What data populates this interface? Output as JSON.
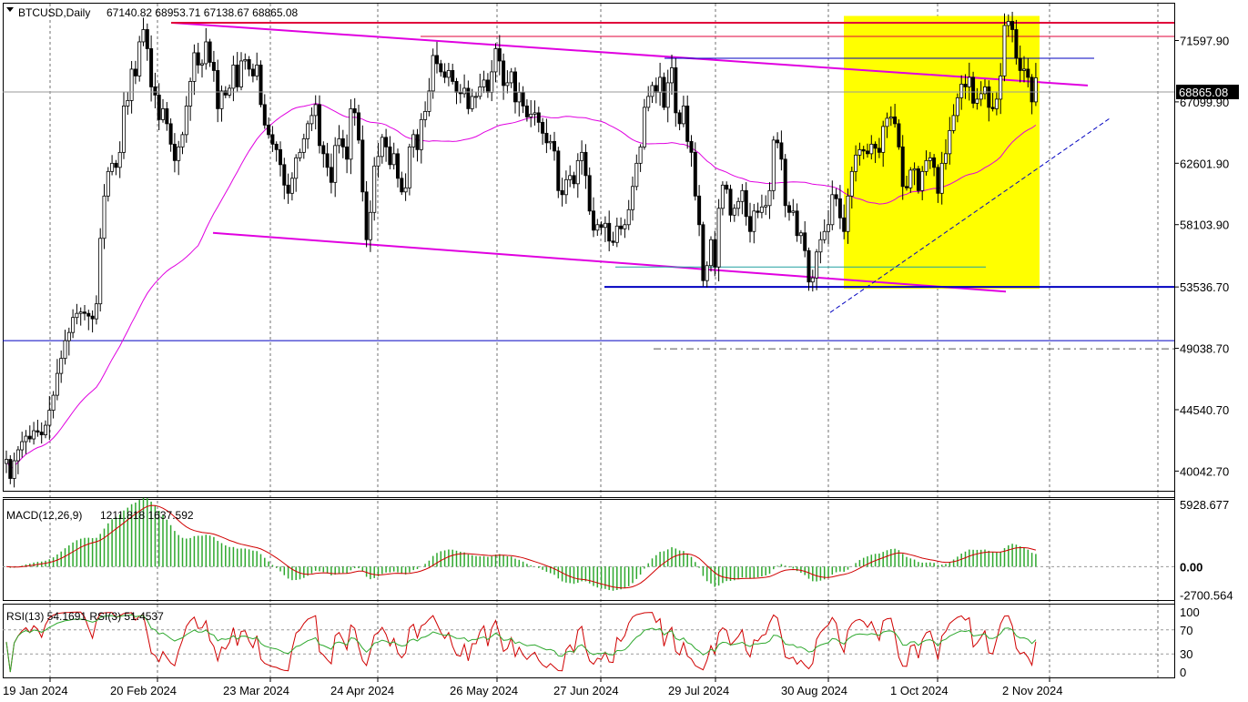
{
  "header": {
    "symbol": "BTCUSD,Daily",
    "ohlc": "67140.82 68953.71 67138.67 68865.08"
  },
  "colors": {
    "background": "#ffffff",
    "grid": "#000000",
    "candle": "#000000",
    "bull_fill": "#ffffff",
    "ma": "#e000e0",
    "channel": "#e000e0",
    "resistance": "#e0003a",
    "support": "#0000c0",
    "highlight": "#ffff00",
    "macd_hist": "#2ea82e",
    "macd_signal": "#d00000",
    "rsi_fast": "#d00000",
    "rsi_slow": "#2ea82e",
    "current_price_label_bg": "#000000"
  },
  "chart_data": [
    {
      "type": "candlestick",
      "symbol": "BTCUSD",
      "timeframe": "Daily",
      "x_tick_labels": [
        "19 Jan 2024",
        "20 Feb 2024",
        "23 Mar 2024",
        "24 Apr 2024",
        "26 May 2024",
        "27 Jun 2024",
        "29 Jul 2024",
        "30 Aug 2024",
        "1 Oct 2024",
        "2 Nov 2024"
      ],
      "y_tick_labels": [
        "71597.90",
        "67099.90",
        "62601.90",
        "58103.90",
        "53536.70",
        "49038.70",
        "44540.70",
        "40042.70"
      ],
      "current_price_label": "68865.08",
      "grid": true,
      "ylim": [
        38600,
        74300
      ],
      "closes": [
        40900,
        39500,
        40800,
        41600,
        42200,
        42600,
        42400,
        43000,
        42900,
        42700,
        43400,
        44500,
        45600,
        47200,
        48300,
        49600,
        50200,
        51300,
        51600,
        51700,
        51600,
        51400,
        51200,
        52300,
        57100,
        60200,
        62000,
        62600,
        62300,
        63400,
        66800,
        67200,
        69500,
        69000,
        71500,
        72400,
        71000,
        68200,
        67600,
        65800,
        66600,
        65500,
        64000,
        62800,
        63800,
        64700,
        66800,
        68600,
        70700,
        69800,
        69900,
        71500,
        70000,
        69400,
        66600,
        67900,
        67600,
        68100,
        69800,
        68200,
        70100,
        70200,
        69500,
        69000,
        69800,
        66900,
        65400,
        64700,
        64000,
        63600,
        62500,
        61000,
        60400,
        61500,
        63000,
        63400,
        64400,
        65500,
        66100,
        66900,
        63900,
        63300,
        62300,
        61200,
        63900,
        64400,
        63800,
        62900,
        66600,
        66300,
        64300,
        60500,
        57000,
        59000,
        62400,
        63100,
        64500,
        63800,
        62500,
        63300,
        61500,
        60500,
        60800,
        63800,
        64700,
        63600,
        65800,
        66400,
        67900,
        70500,
        69900,
        69300,
        68900,
        69400,
        68600,
        67800,
        67700,
        68100,
        66600,
        67500,
        67500,
        68200,
        68700,
        67800,
        69300,
        71000,
        70100,
        68300,
        68500,
        69300,
        67100,
        67800,
        66800,
        66000,
        66200,
        66300,
        65600,
        64800,
        64100,
        64200,
        63500,
        60600,
        60300,
        61400,
        61700,
        61100,
        62800,
        63400,
        61700,
        59100,
        57700,
        58100,
        57900,
        58200,
        56900,
        56800,
        58000,
        57800,
        58100,
        59200,
        60900,
        62600,
        63800,
        66700,
        67500,
        68300,
        67800,
        68900,
        66700,
        68500,
        69600,
        66300,
        65500,
        66800,
        64200,
        63400,
        60200,
        58100,
        54000,
        55100,
        57000,
        55000,
        59300,
        61000,
        60700,
        58800,
        59300,
        59800,
        60600,
        58700,
        57600,
        59100,
        59000,
        59400,
        59500,
        60600,
        64300,
        64100,
        62900,
        59500,
        59000,
        59100,
        57300,
        57500,
        56200,
        53900,
        54200,
        56100,
        57000,
        57600,
        58100,
        60300,
        60000,
        58600,
        57600,
        60200,
        62000,
        63200,
        63600,
        63500,
        63300,
        64000,
        63700,
        63400,
        65300,
        65900,
        66000,
        65500,
        63800,
        60900,
        60800,
        62100,
        62200,
        60600,
        62000,
        62800,
        63000,
        62300,
        60400,
        62600,
        63300,
        65000,
        66100,
        67400,
        68400,
        68200,
        68900,
        67000,
        67300,
        67700,
        68200,
        66700,
        66600,
        67300,
        69000,
        72700,
        73000,
        72400,
        70300,
        69400,
        69500,
        68900,
        67100,
        68865.08
      ],
      "moving_average_end": 65200,
      "highlight_box": {
        "x_start": "30 Aug 2024",
        "x_end": "2 Nov 2024",
        "y_range": [
          53400,
          73400
        ]
      },
      "trendlines": [
        {
          "role": "channel-top",
          "from": [
            72900,
            "20 Feb 2024"
          ],
          "to": [
            68300,
            "2 Nov 2024"
          ]
        },
        {
          "role": "channel-bottom",
          "from": [
            57500,
            "23 Mar 2024"
          ],
          "to": [
            53200,
            "1 Oct 2024"
          ]
        },
        {
          "role": "resistance",
          "value": 72900
        },
        {
          "role": "resistance",
          "value": 71900
        },
        {
          "role": "resistance",
          "value": 70300
        },
        {
          "role": "support",
          "value": 53536.7
        },
        {
          "role": "support",
          "value": 49600
        },
        {
          "role": "support",
          "value": 55000
        },
        {
          "role": "support",
          "value": 49000
        },
        {
          "role": "uptrend",
          "from": [
            53000,
            "30 Aug 2024"
          ],
          "to": [
            65600,
            "2 Nov 2024"
          ]
        }
      ]
    },
    {
      "type": "bar",
      "indicator": "MACD(12,26,9)",
      "readout": "1211.818 1637.592",
      "y_tick_labels": [
        "5928.677",
        "0.00",
        "-2700.564"
      ],
      "ylim": [
        -3000,
        6000
      ],
      "histogram_end": 1211.818,
      "signal_end": 1637.592
    },
    {
      "type": "line",
      "indicator": "RSI(13) 54.1691  RSI(3) 51.4537",
      "y_tick_labels": [
        "100",
        "70",
        "30",
        "0"
      ],
      "ylim": [
        0,
        100
      ],
      "levels": [
        70,
        30
      ],
      "rsi13_end": 54.1691,
      "rsi3_end": 51.4537
    }
  ]
}
